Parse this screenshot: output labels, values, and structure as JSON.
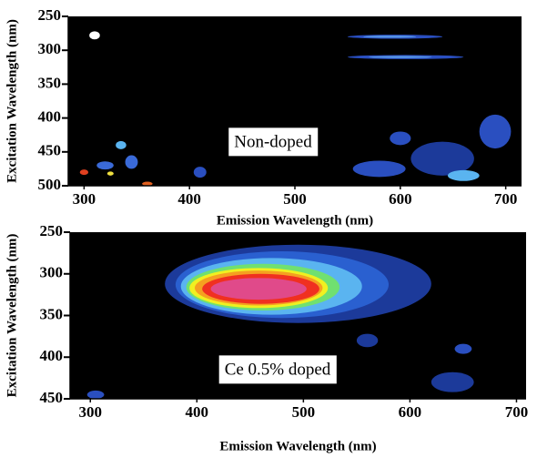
{
  "chart_data": [
    {
      "type": "heatmap",
      "background": "#000000",
      "xlabel": "Emission Wavelength (nm)",
      "ylabel": "Excitation Wavelength (nm)",
      "annotation": "Non-doped",
      "xlim": [
        285,
        715
      ],
      "ylim": [
        250,
        500
      ],
      "xticks": [
        300,
        400,
        500,
        600,
        700
      ],
      "yticks": [
        250,
        300,
        350,
        400,
        450,
        500
      ],
      "features": [
        {
          "x": 310,
          "y": 278,
          "rx": 5,
          "ry": 6,
          "color": "#ffffff"
        },
        {
          "x": 595,
          "y": 280,
          "rx": 45,
          "ry": 3,
          "color": "#2a4fc0"
        },
        {
          "x": 590,
          "y": 280,
          "rx": 25,
          "ry": 1.5,
          "color": "#5a9ae8"
        },
        {
          "x": 605,
          "y": 310,
          "rx": 55,
          "ry": 3,
          "color": "#2a4fc0"
        },
        {
          "x": 600,
          "y": 310,
          "rx": 30,
          "ry": 1.5,
          "color": "#5a9ae8"
        },
        {
          "x": 320,
          "y": 470,
          "rx": 8,
          "ry": 6,
          "color": "#3a6ad8"
        },
        {
          "x": 325,
          "y": 482,
          "rx": 3,
          "ry": 3,
          "color": "#f0e040"
        },
        {
          "x": 345,
          "y": 465,
          "rx": 6,
          "ry": 10,
          "color": "#3a6ad8"
        },
        {
          "x": 360,
          "y": 497,
          "rx": 5,
          "ry": 3,
          "color": "#e06020"
        },
        {
          "x": 300,
          "y": 480,
          "rx": 4,
          "ry": 4,
          "color": "#e04020"
        },
        {
          "x": 335,
          "y": 440,
          "rx": 5,
          "ry": 6,
          "color": "#5ab4f0"
        },
        {
          "x": 410,
          "y": 480,
          "rx": 6,
          "ry": 8,
          "color": "#2a4fc0"
        },
        {
          "x": 580,
          "y": 475,
          "rx": 25,
          "ry": 12,
          "color": "#2a4fc0"
        },
        {
          "x": 640,
          "y": 460,
          "rx": 30,
          "ry": 25,
          "color": "#1c3a9a"
        },
        {
          "x": 660,
          "y": 485,
          "rx": 15,
          "ry": 8,
          "color": "#5ab4f0"
        },
        {
          "x": 690,
          "y": 420,
          "rx": 15,
          "ry": 25,
          "color": "#2a4fc0"
        },
        {
          "x": 600,
          "y": 430,
          "rx": 10,
          "ry": 10,
          "color": "#2a4fc0"
        }
      ]
    },
    {
      "type": "heatmap",
      "background": "#000000",
      "xlabel": "Emission Wavelength (nm)",
      "ylabel": "Excitation Wavelength (nm)",
      "annotation": "Ce 0.5% doped",
      "xlim": [
        281,
        709
      ],
      "ylim": [
        250,
        450
      ],
      "xticks": [
        300,
        400,
        500,
        600,
        700
      ],
      "yticks": [
        250,
        300,
        350,
        400,
        450
      ],
      "features": [
        {
          "x": 495,
          "y": 312,
          "rx": 125,
          "ry": 47,
          "color": "#1c3a9a"
        },
        {
          "x": 480,
          "y": 313,
          "rx": 100,
          "ry": 40,
          "color": "#2a60d0"
        },
        {
          "x": 470,
          "y": 315,
          "rx": 85,
          "ry": 34,
          "color": "#5ab4f0"
        },
        {
          "x": 462,
          "y": 316,
          "rx": 72,
          "ry": 28,
          "color": "#70e070"
        },
        {
          "x": 458,
          "y": 317,
          "rx": 65,
          "ry": 24,
          "color": "#f0f020"
        },
        {
          "x": 458,
          "y": 317,
          "rx": 60,
          "ry": 21,
          "color": "#f5a020"
        },
        {
          "x": 460,
          "y": 318,
          "rx": 55,
          "ry": 18,
          "color": "#f03020"
        },
        {
          "x": 458,
          "y": 318,
          "rx": 45,
          "ry": 13,
          "color": "#e04a8a"
        },
        {
          "x": 305,
          "y": 445,
          "rx": 8,
          "ry": 5,
          "color": "#2a4fc0"
        },
        {
          "x": 560,
          "y": 380,
          "rx": 10,
          "ry": 8,
          "color": "#1c3a9a"
        },
        {
          "x": 640,
          "y": 430,
          "rx": 20,
          "ry": 12,
          "color": "#1c3a9a"
        },
        {
          "x": 650,
          "y": 390,
          "rx": 8,
          "ry": 6,
          "color": "#2a4fc0"
        }
      ]
    }
  ]
}
